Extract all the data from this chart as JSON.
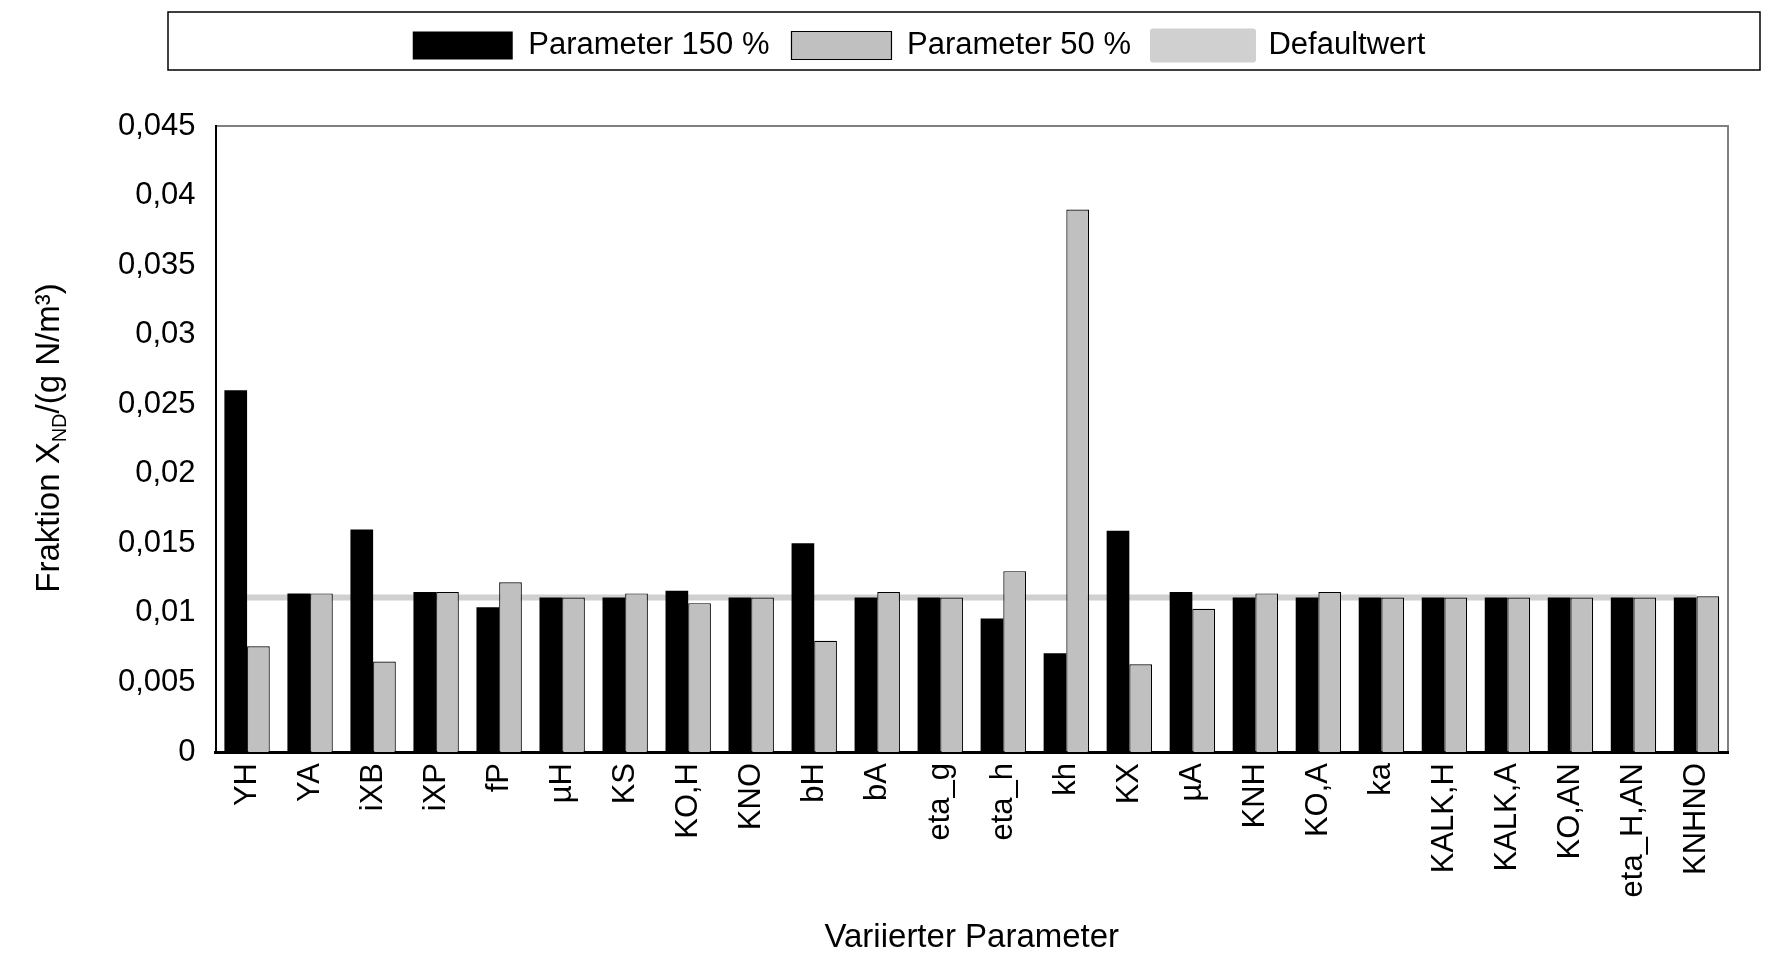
{
  "chart_data": {
    "type": "bar",
    "xlabel": "Variierter Parameter",
    "ylabel": "Fraktion X$_{ND}$/(g N/m³)",
    "categories": [
      "YH",
      "YA",
      "iXB",
      "iXP",
      "fP",
      "µH",
      "KS",
      "KO,H",
      "KNO",
      "bH",
      "bA",
      "eta_g",
      "eta_h",
      "kh",
      "KX",
      "µA",
      "KNH",
      "KO,A",
      "ka",
      "KALK,H",
      "KALK,A",
      "KO,AN",
      "eta_H,AN",
      "KNHNO"
    ],
    "series": [
      {
        "name": "Parameter 150 %",
        "color": "#000000",
        "values": [
          0.026,
          0.0114,
          0.016,
          0.0115,
          0.0104,
          0.0111,
          0.0111,
          0.0116,
          0.0111,
          0.015,
          0.0111,
          0.0111,
          0.0096,
          0.0071,
          0.0159,
          0.0115,
          0.0111,
          0.0111,
          0.0111,
          0.0111,
          0.0111,
          0.0111,
          0.0111,
          0.0111
        ]
      },
      {
        "name": "Parameter 50 %",
        "color": "#c0c0c0",
        "values": [
          0.0076,
          0.0114,
          0.0065,
          0.0115,
          0.0122,
          0.0111,
          0.0114,
          0.0107,
          0.0111,
          0.008,
          0.0115,
          0.0111,
          0.013,
          0.039,
          0.0063,
          0.0103,
          0.0114,
          0.0115,
          0.0111,
          0.0111,
          0.0111,
          0.0111,
          0.0111,
          0.0112
        ]
      },
      {
        "name": "Defaultwert",
        "type": "line",
        "color": "#d0d0d0",
        "values": [
          0.0111,
          0.0111,
          0.0111,
          0.0111,
          0.0111,
          0.0111,
          0.0111,
          0.0111,
          0.0111,
          0.0111,
          0.0111,
          0.0111,
          0.0111,
          0.0111,
          0.0111,
          0.0111,
          0.0111,
          0.0111,
          0.0111,
          0.0111,
          0.0111,
          0.0111,
          0.0111,
          0.0111
        ]
      }
    ],
    "ylim": [
      0,
      0.045
    ],
    "yticks": [
      {
        "value": 0,
        "label": "0"
      },
      {
        "value": 0.005,
        "label": "0,005"
      },
      {
        "value": 0.01,
        "label": "0,01"
      },
      {
        "value": 0.015,
        "label": "0,015"
      },
      {
        "value": 0.02,
        "label": "0,02"
      },
      {
        "value": 0.025,
        "label": "0,025"
      },
      {
        "value": 0.03,
        "label": "0,03"
      },
      {
        "value": 0.035,
        "label": "0,035"
      },
      {
        "value": 0.04,
        "label": "0,04"
      },
      {
        "value": 0.045,
        "label": "0,045"
      }
    ],
    "grid": false,
    "legend": "top",
    "marker": "none"
  }
}
